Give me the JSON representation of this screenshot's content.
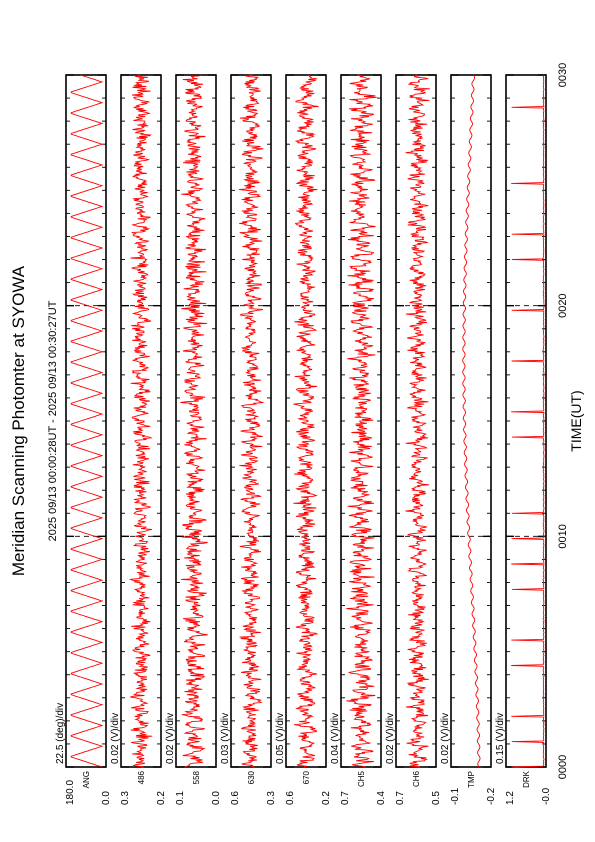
{
  "chart_data": {
    "type": "line",
    "orientation": "rotated-90-ccw",
    "title": "Meridian Scanning Photomter at SYOWA",
    "time_range": "2025 09/13 00:00:28UT - 2025 09/13 00:30:27UT",
    "xlabel": "TIME(UT)",
    "x_ticks": [
      "0000",
      "0010",
      "0020",
      "0030"
    ],
    "xlim_minutes": [
      0,
      30
    ],
    "series_color": "#ff0000",
    "panels": [
      {
        "name": "ANG",
        "scale": "22.5 (deg)/div",
        "ytick_low": "0.0",
        "ytick_high": "180.0",
        "kind": "triangle",
        "period": 0.9,
        "base": 0.1,
        "amp": 0.8,
        "noise": 0.0,
        "spikes": 0
      },
      {
        "name": "486",
        "scale": "0.02 (V)/div",
        "ytick_low": "0.2",
        "ytick_high": "0.3",
        "kind": "noise",
        "period": 0.5,
        "base": 0.5,
        "amp": 0.15,
        "noise": 0.3,
        "spikes": 0
      },
      {
        "name": "558",
        "scale": "0.02 (V)/div",
        "ytick_low": "0.0",
        "ytick_high": "0.1",
        "kind": "noise",
        "period": 0.45,
        "base": 0.55,
        "amp": 0.2,
        "noise": 0.35,
        "spikes": 0
      },
      {
        "name": "630",
        "scale": "0.03 (V)/div",
        "ytick_low": "0.3",
        "ytick_high": "0.6",
        "kind": "noise",
        "period": 0.5,
        "base": 0.5,
        "amp": 0.18,
        "noise": 0.3,
        "spikes": 0
      },
      {
        "name": "670",
        "scale": "0.05 (V)/div",
        "ytick_low": "0.2",
        "ytick_high": "0.6",
        "kind": "noise",
        "period": 0.6,
        "base": 0.5,
        "amp": 0.2,
        "noise": 0.3,
        "spikes": 0
      },
      {
        "name": "CH5",
        "scale": "0.04 (V)/div",
        "ytick_low": "0.4",
        "ytick_high": "0.7",
        "kind": "noise",
        "period": 0.4,
        "base": 0.5,
        "amp": 0.25,
        "noise": 0.35,
        "spikes": 0
      },
      {
        "name": "CH6",
        "scale": "0.02 (V)/div",
        "ytick_low": "0.5",
        "ytick_high": "0.7",
        "kind": "noise",
        "period": 0.5,
        "base": 0.45,
        "amp": 0.2,
        "noise": 0.3,
        "spikes": 0
      },
      {
        "name": "TMP",
        "scale": "0.02 (V)/div",
        "ytick_low": "-0.2",
        "ytick_high": "-0.1",
        "kind": "wave",
        "period": 0.5,
        "base": 0.3,
        "amp": 0.07,
        "noise": 0.03,
        "spikes": 0
      },
      {
        "name": "DRK",
        "scale": "0.15 (V)/div",
        "ytick_low": "-0.0",
        "ytick_high": "1.2",
        "kind": "spikes",
        "period": 0.55,
        "base": 0.05,
        "amp": 0.8,
        "noise": 0.02,
        "spikes": 1
      }
    ]
  }
}
